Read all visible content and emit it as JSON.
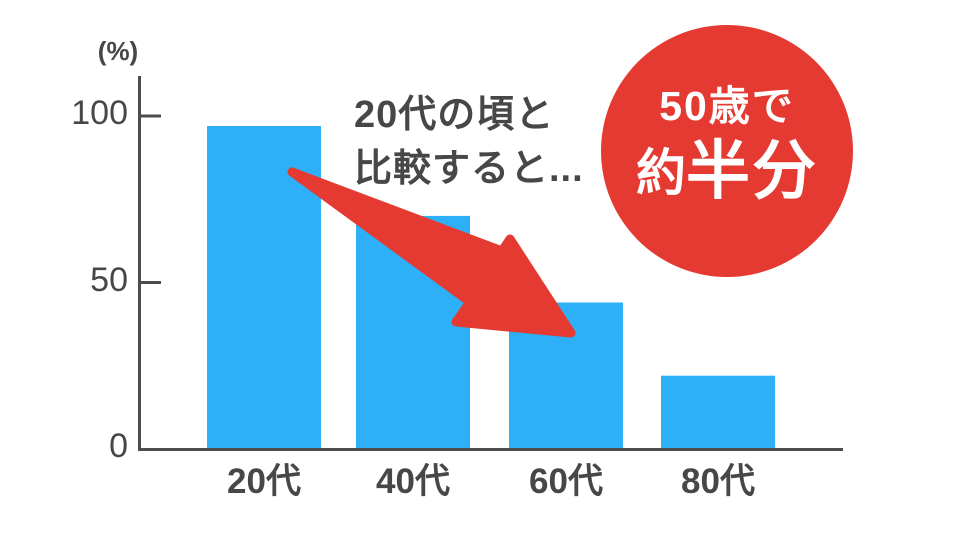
{
  "chart_data": {
    "type": "bar",
    "title": "",
    "categories": [
      "20代",
      "40代",
      "60代",
      "80代"
    ],
    "values": [
      97,
      70,
      44,
      22
    ],
    "ylabel": "(%)",
    "xlabel": "",
    "yticks": [
      0,
      50,
      100
    ],
    "ylim": [
      0,
      110
    ],
    "grid": false,
    "legend_position": "none",
    "annotations": {
      "arrow_note": "20代の頃と比較すると...",
      "badge_note": "50歳で約半分"
    }
  },
  "annotation": {
    "line1": "20代の頃と",
    "line2": "比較すると..."
  },
  "badge": {
    "line1": "50歳で",
    "line2_small": "約",
    "line2_large": "半分"
  },
  "colors": {
    "bar_blue": "#2eb0f8",
    "accent_red": "#e53a31",
    "axis_gray": "#4d4d4d",
    "text_gray": "#474747",
    "badge_text_white": "#ffffff",
    "background": "#ffffff"
  }
}
